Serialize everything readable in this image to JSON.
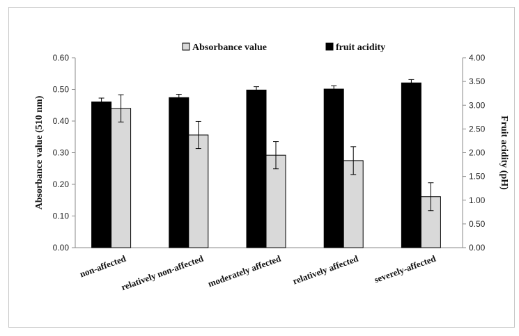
{
  "chart_data": {
    "type": "bar",
    "categories": [
      "non-affected",
      "relatively non-affected",
      "moderately  affected",
      "relatively affected",
      "severely-affected"
    ],
    "series": [
      {
        "name": "fruit acidity",
        "axis": "right",
        "color": "#000000",
        "values": [
          3.07,
          3.16,
          3.32,
          3.34,
          3.47
        ],
        "errors": [
          0.08,
          0.07,
          0.07,
          0.07,
          0.07
        ]
      },
      {
        "name": "Absorbance value",
        "axis": "left",
        "color": "#d9d9d9",
        "values": [
          0.44,
          0.356,
          0.292,
          0.275,
          0.161
        ],
        "errors": [
          0.043,
          0.043,
          0.043,
          0.044,
          0.044
        ]
      }
    ],
    "ylabel": "Absorbance value (510 nm)",
    "ylim": [
      0,
      0.6
    ],
    "yticks": [
      "0.00",
      "0.10",
      "0.20",
      "0.30",
      "0.40",
      "0.50",
      "0.60"
    ],
    "y2label": "Fruit acidity (pH)",
    "y2lim": [
      0,
      4
    ],
    "y2ticks": [
      "0.00",
      "0.50",
      "1.00",
      "1.50",
      "2.00",
      "2.50",
      "3.00",
      "3.50",
      "4.00"
    ],
    "legend_position": "top-center",
    "legend_order": [
      "Absorbance value",
      "fruit acidity"
    ],
    "grid": false
  }
}
